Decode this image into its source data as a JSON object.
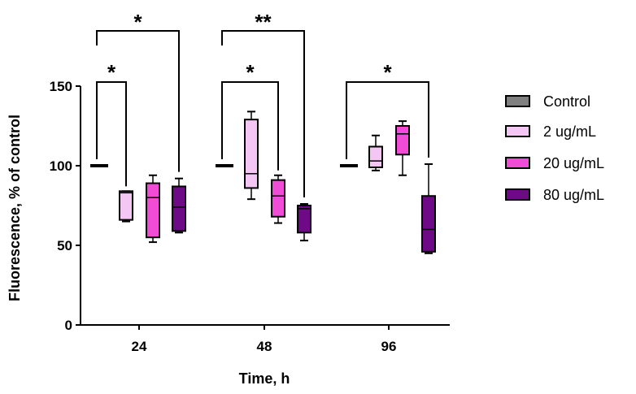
{
  "chart_data": {
    "type": "box",
    "xlabel": "Time, h",
    "ylabel": "Fluorescence, % of control",
    "ylim": [
      0,
      150
    ],
    "yticks": [
      0,
      50,
      100,
      150
    ],
    "categories": [
      "24",
      "48",
      "96"
    ],
    "series": [
      {
        "name": "Control",
        "color": "#808080",
        "boxes": [
          {
            "min": 100,
            "q1": 100,
            "median": 100,
            "q3": 100,
            "max": 100
          },
          {
            "min": 100,
            "q1": 100,
            "median": 100,
            "q3": 100,
            "max": 100
          },
          {
            "min": 100,
            "q1": 100,
            "median": 100,
            "q3": 100,
            "max": 100
          }
        ]
      },
      {
        "name": "2 ug/mL",
        "color": "#f3c6f3",
        "boxes": [
          {
            "min": 65,
            "q1": 66,
            "median": 83,
            "q3": 84,
            "max": 84
          },
          {
            "min": 79,
            "q1": 86,
            "median": 95,
            "q3": 129,
            "max": 134
          },
          {
            "min": 97,
            "q1": 99,
            "median": 103,
            "q3": 112,
            "max": 119
          }
        ]
      },
      {
        "name": "20 ug/mL",
        "color": "#f04cd6",
        "boxes": [
          {
            "min": 52,
            "q1": 55,
            "median": 80,
            "q3": 89,
            "max": 94
          },
          {
            "min": 64,
            "q1": 68,
            "median": 81,
            "q3": 91,
            "max": 94
          },
          {
            "min": 94,
            "q1": 107,
            "median": 120,
            "q3": 125,
            "max": 128
          }
        ]
      },
      {
        "name": "80 ug/mL",
        "color": "#6e0a86",
        "boxes": [
          {
            "min": 58,
            "q1": 59,
            "median": 74,
            "q3": 87,
            "max": 92
          },
          {
            "min": 53,
            "q1": 58,
            "median": 73,
            "q3": 75,
            "max": 76
          },
          {
            "min": 45,
            "q1": 46,
            "median": 60,
            "q3": 81,
            "max": 101
          }
        ]
      }
    ],
    "significance": [
      {
        "category": "24",
        "from": "Control",
        "to": "2 ug/mL",
        "label": "*",
        "level": 1
      },
      {
        "category": "24",
        "from": "Control",
        "to": "80 ug/mL",
        "label": "*",
        "level": 2
      },
      {
        "category": "48",
        "from": "Control",
        "to": "20 ug/mL",
        "label": "*",
        "level": 1
      },
      {
        "category": "48",
        "from": "Control",
        "to": "80 ug/mL",
        "label": "**",
        "level": 2
      },
      {
        "category": "96",
        "from": "Control",
        "to": "80 ug/mL",
        "label": "*",
        "level": 1
      }
    ],
    "legend": [
      "Control",
      "2 ug/mL",
      "20 ug/mL",
      "80 ug/mL"
    ],
    "legend_position": "right"
  }
}
